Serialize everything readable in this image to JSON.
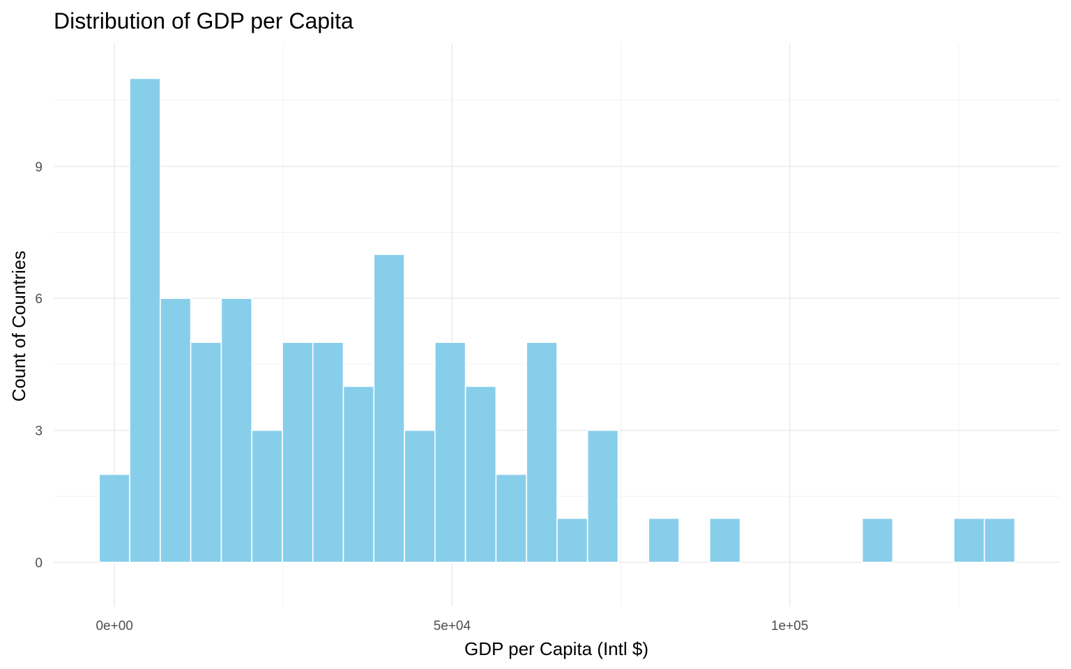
{
  "chart_data": {
    "type": "bar",
    "title": "Distribution of GDP per Capita",
    "xlabel": "GDP per Capita (Intl $)",
    "ylabel": "Count of Countries",
    "bin_width": 4520,
    "bins": [
      {
        "x0": -2260,
        "x1": 2260,
        "count": 2
      },
      {
        "x0": 2260,
        "x1": 6780,
        "count": 11
      },
      {
        "x0": 6780,
        "x1": 11300,
        "count": 6
      },
      {
        "x0": 11300,
        "x1": 15820,
        "count": 5
      },
      {
        "x0": 15820,
        "x1": 20340,
        "count": 6
      },
      {
        "x0": 20340,
        "x1": 24860,
        "count": 3
      },
      {
        "x0": 24860,
        "x1": 29380,
        "count": 5
      },
      {
        "x0": 29380,
        "x1": 33900,
        "count": 5
      },
      {
        "x0": 33900,
        "x1": 38420,
        "count": 4
      },
      {
        "x0": 38420,
        "x1": 42940,
        "count": 7
      },
      {
        "x0": 42940,
        "x1": 47460,
        "count": 3
      },
      {
        "x0": 47460,
        "x1": 51980,
        "count": 5
      },
      {
        "x0": 51980,
        "x1": 56500,
        "count": 4
      },
      {
        "x0": 56500,
        "x1": 61020,
        "count": 2
      },
      {
        "x0": 61020,
        "x1": 65540,
        "count": 5
      },
      {
        "x0": 65540,
        "x1": 70060,
        "count": 1
      },
      {
        "x0": 70060,
        "x1": 74580,
        "count": 3
      },
      {
        "x0": 74580,
        "x1": 79100,
        "count": 0
      },
      {
        "x0": 79100,
        "x1": 83620,
        "count": 1
      },
      {
        "x0": 83620,
        "x1": 88140,
        "count": 0
      },
      {
        "x0": 88140,
        "x1": 92660,
        "count": 1
      },
      {
        "x0": 92660,
        "x1": 97180,
        "count": 0
      },
      {
        "x0": 97180,
        "x1": 101700,
        "count": 0
      },
      {
        "x0": 101700,
        "x1": 106220,
        "count": 0
      },
      {
        "x0": 106220,
        "x1": 110740,
        "count": 0
      },
      {
        "x0": 110740,
        "x1": 115260,
        "count": 1
      },
      {
        "x0": 115260,
        "x1": 119780,
        "count": 0
      },
      {
        "x0": 119780,
        "x1": 124300,
        "count": 0
      },
      {
        "x0": 124300,
        "x1": 128820,
        "count": 1
      },
      {
        "x0": 128820,
        "x1": 133340,
        "count": 1
      }
    ],
    "xlim": [
      -9000,
      140000
    ],
    "ylim": [
      -1,
      11.8
    ],
    "x_ticks": [
      {
        "value": 0,
        "label": "0e+00"
      },
      {
        "value": 50000,
        "label": "5e+04"
      },
      {
        "value": 100000,
        "label": "1e+05"
      }
    ],
    "x_minor": [
      -25000,
      25000,
      75000,
      125000
    ],
    "y_ticks": [
      {
        "value": 0,
        "label": "0"
      },
      {
        "value": 3,
        "label": "3"
      },
      {
        "value": 6,
        "label": "6"
      },
      {
        "value": 9,
        "label": "9"
      }
    ],
    "y_minor": [
      1.5,
      4.5,
      7.5,
      10.5
    ],
    "grid": true,
    "legend": "none",
    "colors": {
      "bar_fill": "#87CEEB",
      "bar_outline": "#FFFFFF",
      "grid": "#EBEBEB",
      "tick_text": "#4D4D4D"
    }
  }
}
